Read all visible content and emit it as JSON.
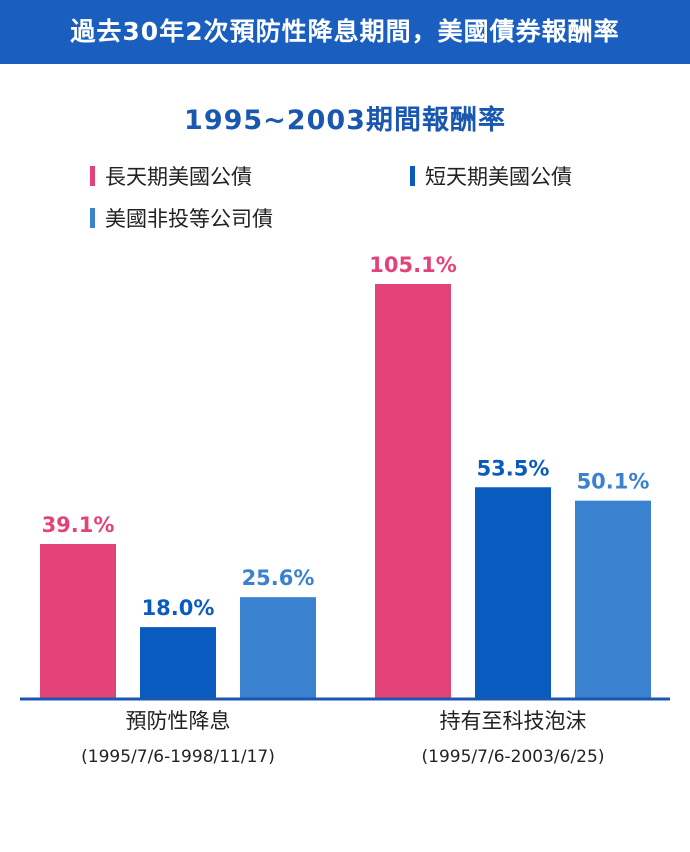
{
  "header": {
    "title": "過去30年2次預防性降息期間，美國債券報酬率"
  },
  "colors": {
    "banner": "#1a5fc0",
    "long_treasury": "#e4437a",
    "short_treasury": "#0a5bbf",
    "corporate": "#3a82d0"
  },
  "chart_data": {
    "type": "bar",
    "title": "1995~2003期間報酬率",
    "categories": [
      {
        "label": "預防性降息",
        "sublabel": "(1995/7/6-1998/11/17)"
      },
      {
        "label": "持有至科技泡沫",
        "sublabel": "(1995/7/6-2003/6/25)"
      }
    ],
    "series": [
      {
        "name": "長天期美國公債",
        "values": [
          39.1,
          105.1
        ],
        "labels": [
          "39.1%",
          "105.1%"
        ]
      },
      {
        "name": "短天期美國公債",
        "values": [
          18.0,
          53.5
        ],
        "labels": [
          "18.0%",
          "53.5%"
        ]
      },
      {
        "name": "美國非投等公司債",
        "values": [
          25.6,
          50.1
        ],
        "labels": [
          "25.6%",
          "50.1%"
        ]
      }
    ],
    "ylim": [
      0,
      105.1
    ],
    "grid": false,
    "legend": "top-left"
  }
}
